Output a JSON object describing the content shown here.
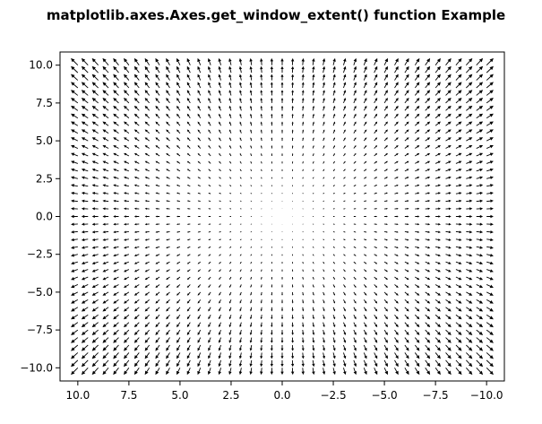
{
  "chart_data": {
    "type": "quiver",
    "title": "matplotlib.axes.Axes.get_window_extent() function Example",
    "xlabel": "",
    "ylabel": "",
    "xlim": [
      10.87,
      -10.87
    ],
    "ylim": [
      -10.87,
      10.87
    ],
    "x_inverted": true,
    "xticks": [
      10.0,
      7.5,
      5.0,
      2.5,
      0.0,
      -2.5,
      -5.0,
      -7.5,
      -10.0
    ],
    "xtick_labels": [
      "10.0",
      "7.5",
      "5.0",
      "2.5",
      "0.0",
      "−2.5",
      "−5.0",
      "−7.5",
      "−10.0"
    ],
    "yticks": [
      10.0,
      7.5,
      5.0,
      2.5,
      0.0,
      -2.5,
      -5.0,
      -7.5,
      -10.0
    ],
    "ytick_labels": [
      "10.0",
      "7.5",
      "5.0",
      "2.5",
      "0.0",
      "−2.5",
      "−5.0",
      "−7.5",
      "−10.0"
    ],
    "grid_x": {
      "start": -10,
      "stop": 10,
      "step": 0.5
    },
    "grid_y": {
      "start": -10,
      "stop": 10,
      "step": 0.5
    },
    "vector_field": {
      "u": "x",
      "v": "y"
    },
    "grid": false,
    "color": "#000000"
  }
}
